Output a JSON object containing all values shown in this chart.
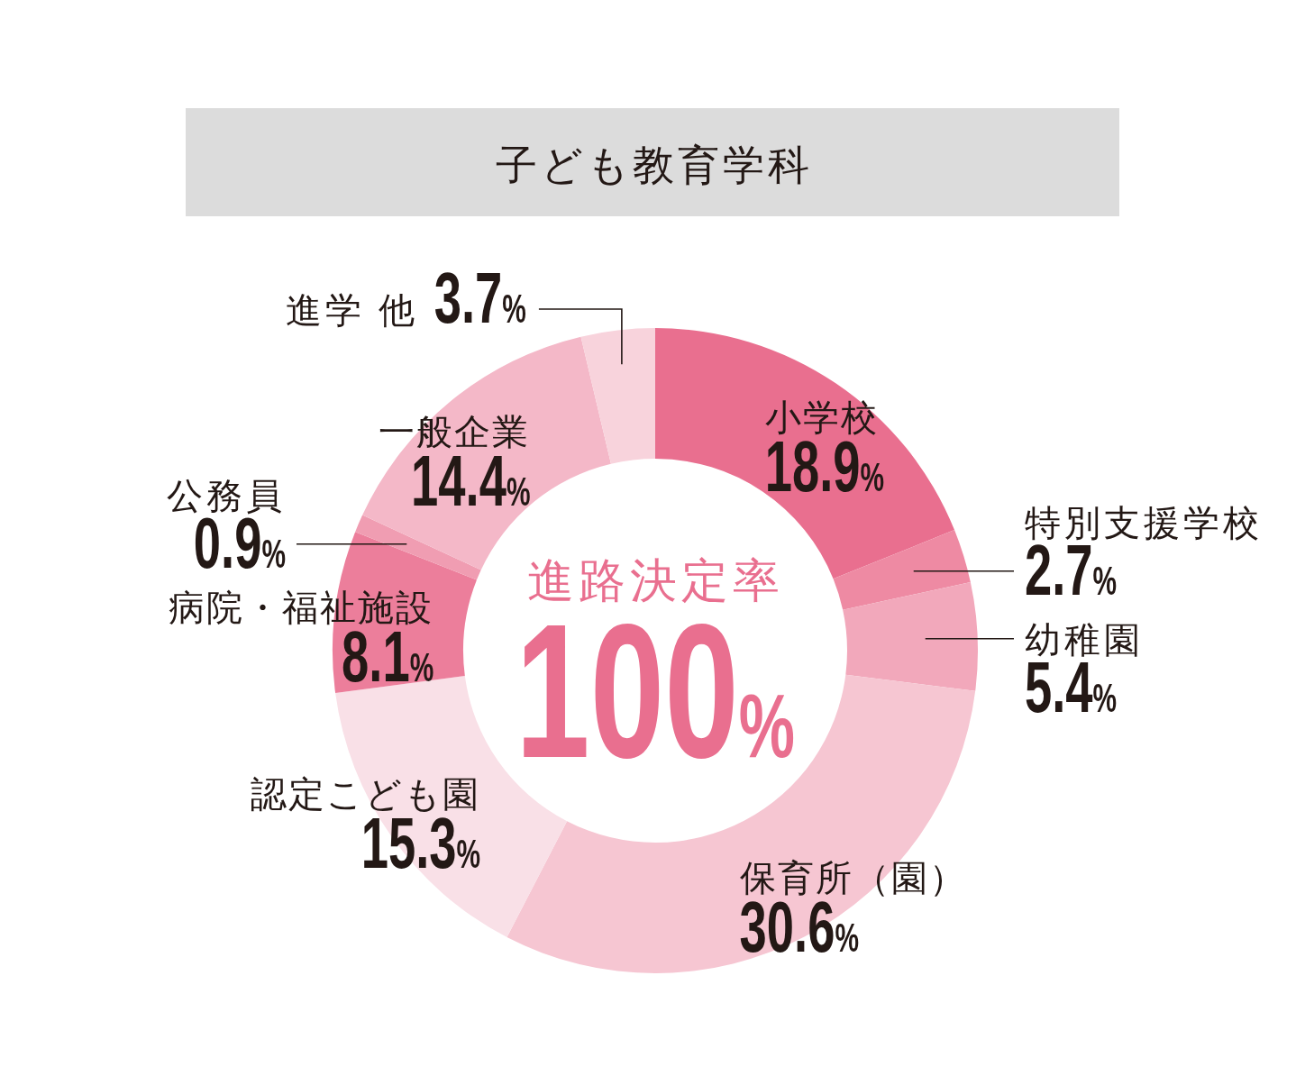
{
  "chart_data": {
    "type": "donut",
    "title": "子ども教育学科",
    "categories": [
      "小学校",
      "特別支援学校",
      "幼稚園",
      "保育所（園）",
      "認定こども園",
      "病院・福祉施設",
      "公務員",
      "一般企業",
      "進学 他"
    ],
    "values": [
      18.9,
      2.7,
      5.4,
      30.6,
      15.3,
      8.1,
      0.9,
      14.4,
      3.7
    ],
    "colors": [
      "#e96f8f",
      "#ee8aa3",
      "#f2a8bb",
      "#f6c6d2",
      "#f9e0e7",
      "#ec7e9b",
      "#f09db2",
      "#f4b8c8",
      "#f8d3dc"
    ],
    "value_labels": [
      "18.9%",
      "2.7%",
      "5.4%",
      "30.6%",
      "15.3%",
      "8.1%",
      "0.9%",
      "14.4%",
      "3.7%"
    ],
    "annotations": [
      "進路決定率",
      "100%"
    ]
  }
}
